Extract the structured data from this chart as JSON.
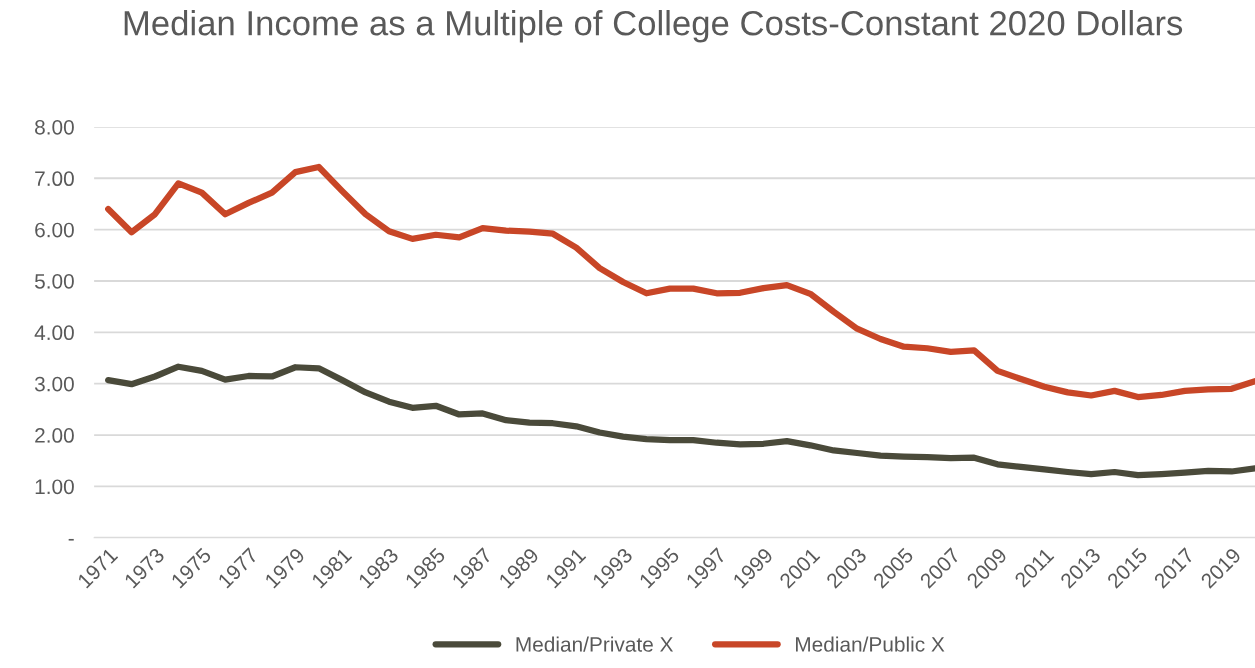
{
  "chart_data": {
    "type": "line",
    "title": "Median Income as a Multiple of College Costs-Constant 2020 Dollars",
    "categories": [
      "1971",
      null,
      "1973",
      null,
      "1975",
      null,
      "1977",
      null,
      "1979",
      null,
      "1981",
      null,
      "1983",
      null,
      "1985",
      null,
      "1987",
      null,
      "1989",
      null,
      "1991",
      null,
      "1993",
      null,
      "1995",
      null,
      "1997",
      null,
      "1999",
      null,
      "2001",
      null,
      "2003",
      null,
      "2005",
      null,
      "2007",
      null,
      "2009",
      null,
      "2011",
      null,
      "2013",
      null,
      "2015",
      null,
      "2017",
      null,
      "2019",
      null
    ],
    "series": [
      {
        "name": "Median/Private X",
        "color": "#4a4a3a",
        "values": [
          3.07,
          2.99,
          3.14,
          3.33,
          3.25,
          3.08,
          3.15,
          3.14,
          3.32,
          3.3,
          3.07,
          2.83,
          2.65,
          2.53,
          2.57,
          2.4,
          2.42,
          2.29,
          2.24,
          2.23,
          2.17,
          2.05,
          1.97,
          1.92,
          1.9,
          1.9,
          1.85,
          1.82,
          1.83,
          1.88,
          1.8,
          1.7,
          1.65,
          1.6,
          1.58,
          1.57,
          1.55,
          1.56,
          1.43,
          1.38,
          1.33,
          1.28,
          1.24,
          1.28,
          1.22,
          1.24,
          1.27,
          1.3,
          1.29,
          1.35
        ]
      },
      {
        "name": "Median/Public X",
        "color": "#c84627",
        "values": [
          6.4,
          5.95,
          6.3,
          6.9,
          6.72,
          6.3,
          6.52,
          6.72,
          7.12,
          7.22,
          6.75,
          6.3,
          5.97,
          5.82,
          5.9,
          5.85,
          6.03,
          5.98,
          5.96,
          5.92,
          5.65,
          5.25,
          4.98,
          4.76,
          4.85,
          4.85,
          4.76,
          4.77,
          4.86,
          4.92,
          4.75,
          4.4,
          4.07,
          3.87,
          3.72,
          3.69,
          3.62,
          3.65,
          3.25,
          3.09,
          2.94,
          2.83,
          2.77,
          2.86,
          2.74,
          2.78,
          2.86,
          2.89,
          2.9,
          3.05
        ]
      }
    ],
    "ylim": [
      0,
      8
    ],
    "yticks": [
      {
        "value": 0,
        "label": "-"
      },
      {
        "value": 1,
        "label": "1.00"
      },
      {
        "value": 2,
        "label": "2.00"
      },
      {
        "value": 3,
        "label": "3.00"
      },
      {
        "value": 4,
        "label": "4.00"
      },
      {
        "value": 5,
        "label": "5.00"
      },
      {
        "value": 6,
        "label": "6.00"
      },
      {
        "value": 7,
        "label": "7.00"
      },
      {
        "value": 8,
        "label": "8.00"
      }
    ],
    "grid": "y",
    "legend": "bottom",
    "marker": "none",
    "line_style": "solid"
  }
}
